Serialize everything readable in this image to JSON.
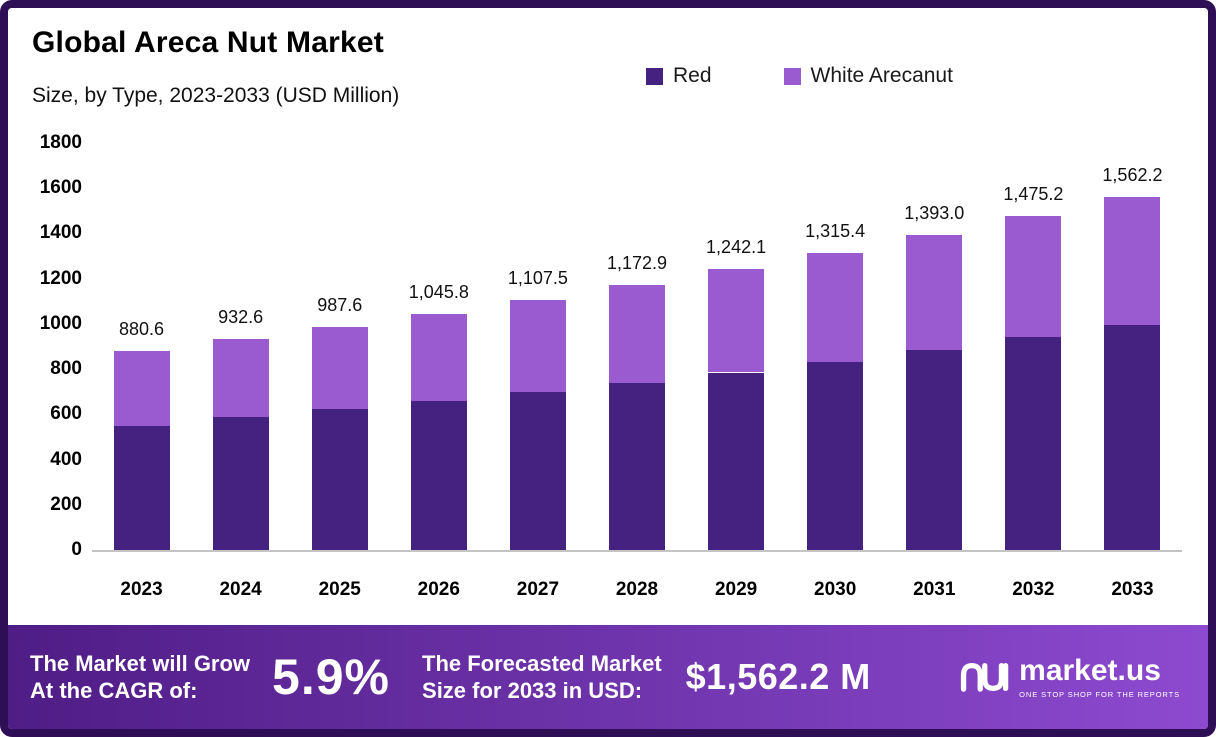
{
  "header": {
    "title": "Global Areca Nut Market",
    "subtitle": "Size, by Type, 2023-2033 (USD Million)"
  },
  "chart_data": {
    "type": "bar",
    "stacked": true,
    "title": "Global Areca Nut Market Size, by Type, 2023-2033 (USD Million)",
    "ylabel": "USD Million",
    "ylim": [
      0,
      1800
    ],
    "yticks": [
      0,
      200,
      400,
      600,
      800,
      1000,
      1200,
      1400,
      1600,
      1800
    ],
    "grid": false,
    "legend_position": "top",
    "categories": [
      "2023",
      "2024",
      "2025",
      "2026",
      "2027",
      "2028",
      "2029",
      "2030",
      "2031",
      "2032",
      "2033"
    ],
    "series": [
      {
        "name": "Red",
        "color": "#452180",
        "values": [
          550,
          590,
          625,
          660,
          700,
          740,
          785,
          830,
          885,
          940,
          995
        ]
      },
      {
        "name": "White Arecanut",
        "color": "#9b5bd0",
        "values": [
          330.6,
          342.6,
          362.6,
          385.8,
          407.5,
          432.9,
          457.1,
          485.4,
          508.0,
          535.2,
          567.2
        ]
      }
    ],
    "totals": [
      880.6,
      932.6,
      987.6,
      1045.8,
      1107.5,
      1172.9,
      1242.1,
      1315.4,
      1393.0,
      1475.2,
      1562.2
    ],
    "total_labels": [
      "880.6",
      "932.6",
      "987.6",
      "1,045.8",
      "1,107.5",
      "1,172.9",
      "1,242.1",
      "1,315.4",
      "1,393.0",
      "1,475.2",
      "1,562.2"
    ]
  },
  "banner": {
    "grow_line1": "The Market will Grow",
    "grow_line2": "At the CAGR of:",
    "cagr": "5.9%",
    "forecast_line1": "The Forecasted Market",
    "forecast_line2": "Size for 2033 in USD:",
    "forecast_value": "$1,562.2 M",
    "brand": "market.us",
    "tagline": "ONE STOP SHOP FOR THE REPORTS"
  },
  "colors": {
    "frame_border": "#2e0e55",
    "banner_gradient_from": "#4f1d86",
    "banner_gradient_to": "#8d4ad0",
    "axis_line": "#c4c4c4"
  }
}
